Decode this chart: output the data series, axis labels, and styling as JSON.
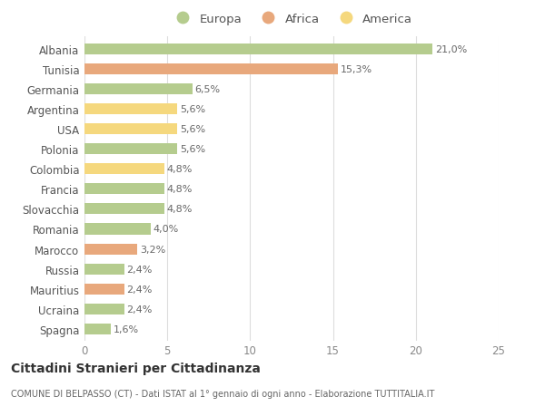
{
  "countries": [
    "Albania",
    "Tunisia",
    "Germania",
    "Argentina",
    "USA",
    "Polonia",
    "Colombia",
    "Francia",
    "Slovacchia",
    "Romania",
    "Marocco",
    "Russia",
    "Mauritius",
    "Ucraina",
    "Spagna"
  ],
  "values": [
    21.0,
    15.3,
    6.5,
    5.6,
    5.6,
    5.6,
    4.8,
    4.8,
    4.8,
    4.0,
    3.2,
    2.4,
    2.4,
    2.4,
    1.6
  ],
  "labels": [
    "21,0%",
    "15,3%",
    "6,5%",
    "5,6%",
    "5,6%",
    "5,6%",
    "4,8%",
    "4,8%",
    "4,8%",
    "4,0%",
    "3,2%",
    "2,4%",
    "2,4%",
    "2,4%",
    "1,6%"
  ],
  "continents": [
    "Europa",
    "Africa",
    "Europa",
    "America",
    "America",
    "Europa",
    "America",
    "Europa",
    "Europa",
    "Europa",
    "Africa",
    "Europa",
    "Africa",
    "Europa",
    "Europa"
  ],
  "colors": {
    "Europa": "#b5cc8e",
    "Africa": "#e8a87c",
    "America": "#f5d87e"
  },
  "background_color": "#ffffff",
  "plot_bg_color": "#ffffff",
  "title": "Cittadini Stranieri per Cittadinanza",
  "subtitle": "COMUNE DI BELPASSO (CT) - Dati ISTAT al 1° gennaio di ogni anno - Elaborazione TUTTITALIA.IT",
  "xlim": [
    0,
    25
  ],
  "xticks": [
    0,
    5,
    10,
    15,
    20,
    25
  ],
  "bar_height": 0.55,
  "figsize": [
    6.0,
    4.6
  ],
  "dpi": 100
}
